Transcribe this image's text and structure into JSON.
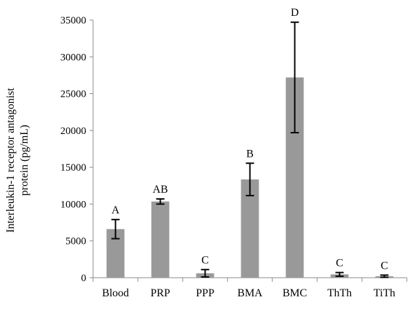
{
  "chart_data": {
    "type": "bar",
    "ylabel": [
      "Interleukin-1 receptor antagonist",
      "protein (pg/mL)"
    ],
    "categories": [
      "Blood",
      "PRP",
      "PPP",
      "BMA",
      "BMC",
      "ThTh",
      "TiTh"
    ],
    "values": [
      6600,
      10350,
      600,
      13350,
      27200,
      450,
      200
    ],
    "errors": [
      1300,
      350,
      500,
      2200,
      7500,
      250,
      150
    ],
    "significance": [
      "A",
      "AB",
      "C",
      "B",
      "D",
      "C",
      "C"
    ],
    "ylim": [
      0,
      35000
    ],
    "yticks": [
      0,
      5000,
      10000,
      15000,
      20000,
      25000,
      30000,
      35000
    ],
    "bar_color": "#999999",
    "error_color": "#000000",
    "grid": false,
    "legend": "none"
  }
}
